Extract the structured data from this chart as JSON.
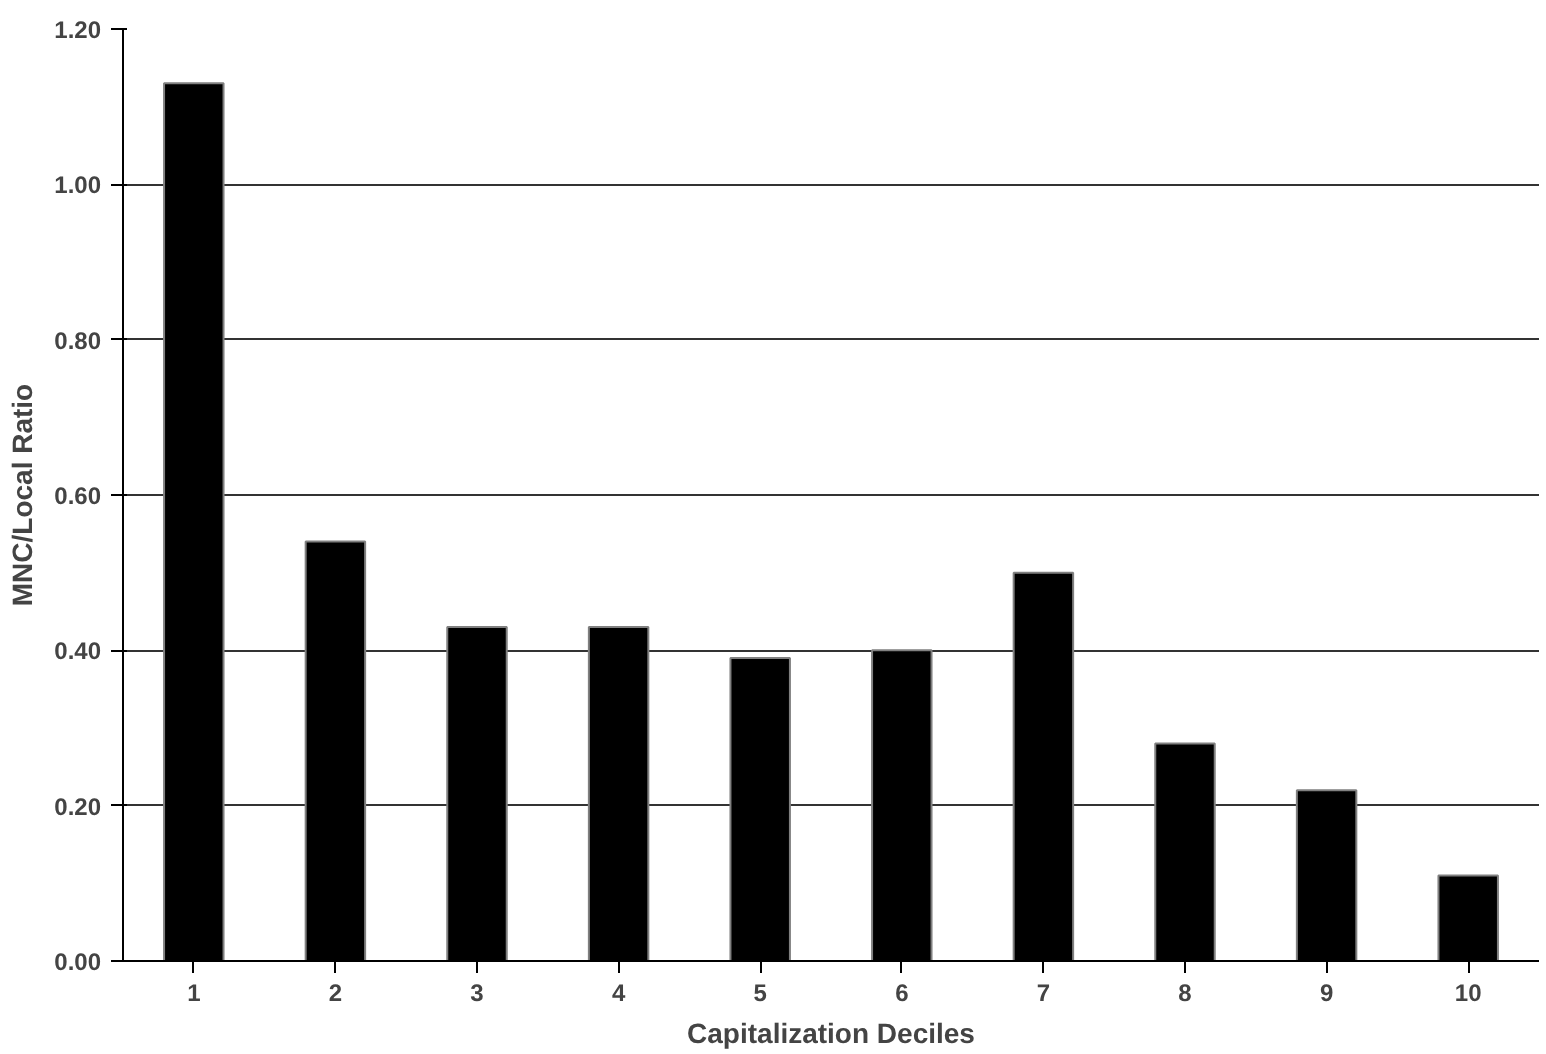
{
  "chart_data": {
    "type": "bar",
    "xlabel": "Capitalization Deciles",
    "ylabel": "MNC/Local Ratio",
    "categories": [
      "1",
      "2",
      "3",
      "4",
      "5",
      "6",
      "7",
      "8",
      "9",
      "10"
    ],
    "values": [
      1.13,
      0.54,
      0.43,
      0.43,
      0.39,
      0.4,
      0.5,
      0.28,
      0.22,
      0.11
    ],
    "color": "#000000",
    "ylim": [
      0,
      1.2
    ],
    "yticks": [
      {
        "value": 0,
        "label": "0.00"
      },
      {
        "value": 0.2,
        "label": "0.20"
      },
      {
        "value": 0.4,
        "label": "0.40"
      },
      {
        "value": 0.6,
        "label": "0.60"
      },
      {
        "value": 0.8,
        "label": "0.80"
      },
      {
        "value": 1.0,
        "label": "1.00"
      },
      {
        "value": 1.2,
        "label": "1.20"
      }
    ],
    "grid": "y"
  }
}
